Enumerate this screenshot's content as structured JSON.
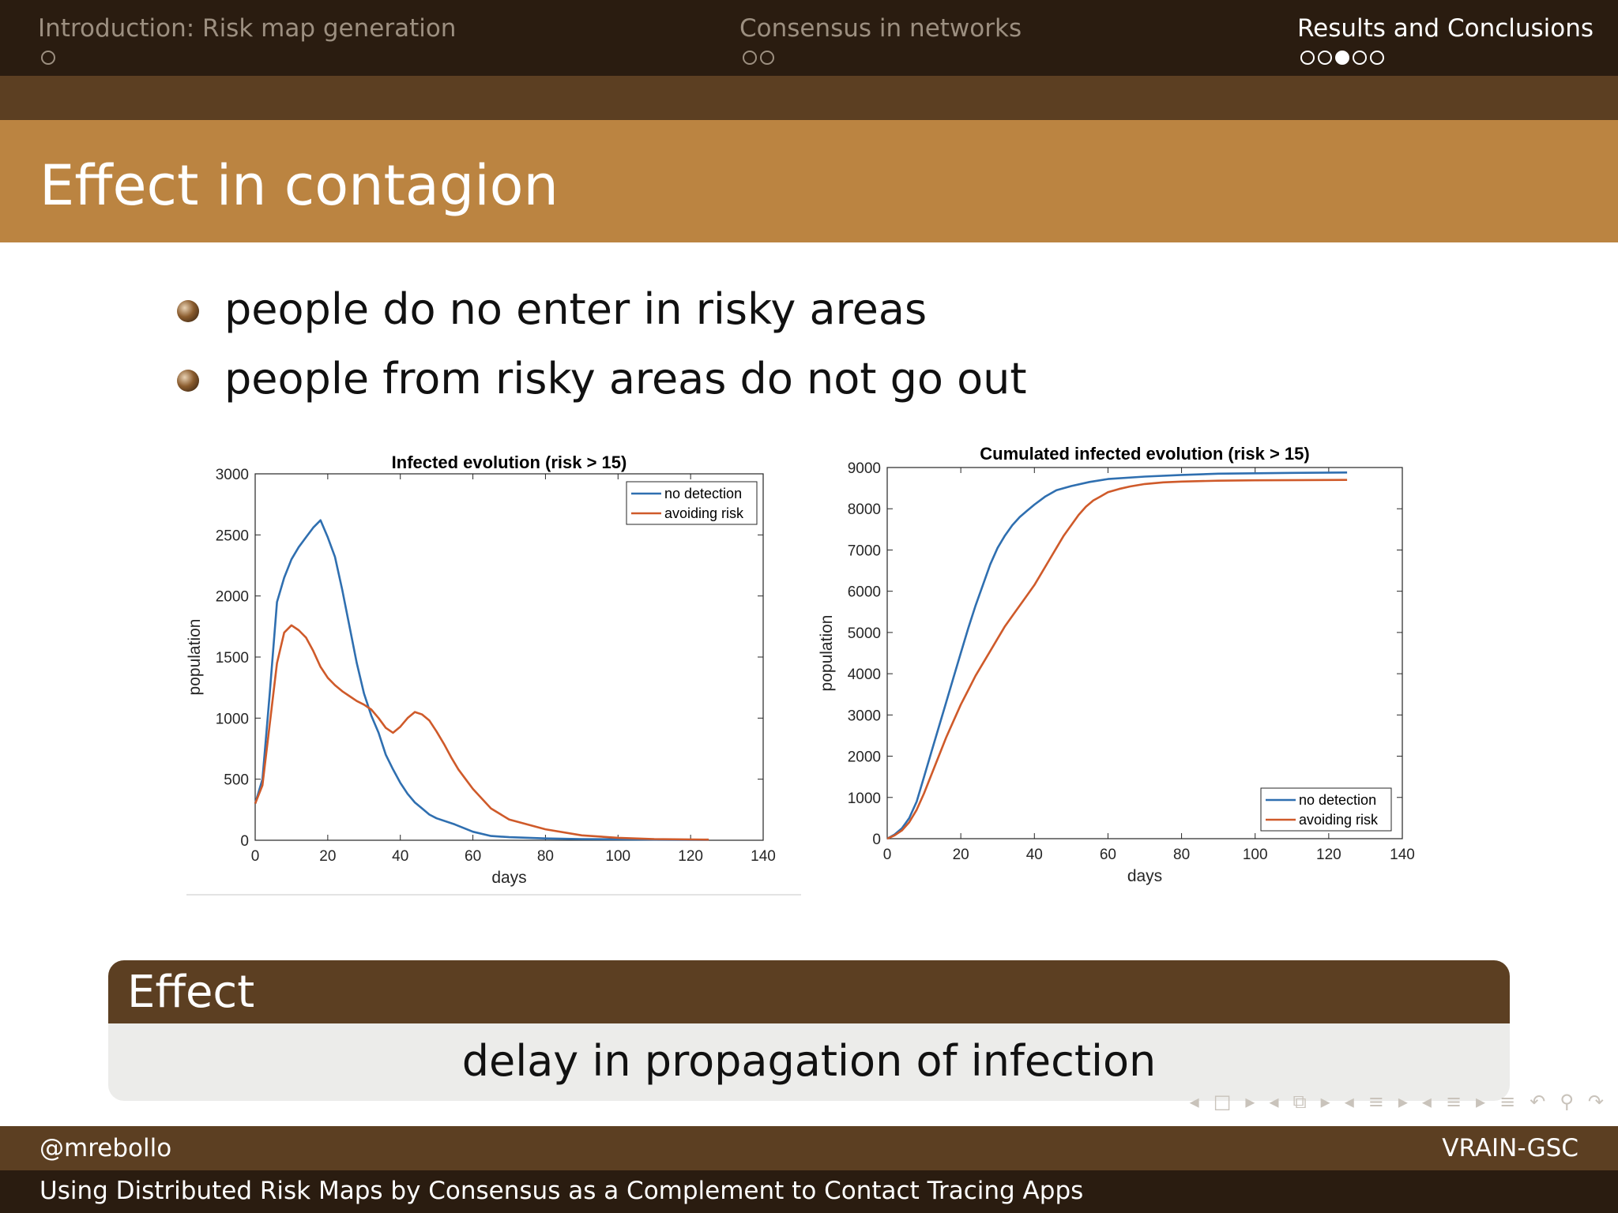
{
  "header": {
    "sections": [
      {
        "label": "Introduction: Risk map generation",
        "subsections": 1,
        "current": -1
      },
      {
        "label": "Consensus in networks",
        "subsections": 2,
        "current": -1
      },
      {
        "label": "Results and Conclusions",
        "subsections": 5,
        "current": 2
      }
    ]
  },
  "frame": {
    "title": "Effect in contagion"
  },
  "bullets": [
    "people do no enter in risky areas",
    "people from risky areas do not go out"
  ],
  "block": {
    "title": "Effect",
    "body": "delay in propagation of infection"
  },
  "footer": {
    "author": "@mrebollo",
    "institute": "VRAIN-GSC",
    "talk_title": "Using Distributed Risk Maps by Consensus as a Complement to Contact Tracing Apps"
  },
  "colors": {
    "series_blue": "#2f6fb0",
    "series_red": "#cf5a2a",
    "title_bar": "#bb8441",
    "dark_brown": "#2a1c10",
    "mid_brown": "#5c3f22"
  },
  "chart_data": [
    {
      "type": "line",
      "title": "Infected evolution (risk > 15)",
      "xlabel": "days",
      "ylabel": "population",
      "xlim": [
        0,
        140
      ],
      "ylim": [
        0,
        3000
      ],
      "xticks": [
        0,
        20,
        40,
        60,
        80,
        100,
        120,
        140
      ],
      "yticks": [
        0,
        500,
        1000,
        1500,
        2000,
        2500,
        3000
      ],
      "legend": "top-right",
      "series": [
        {
          "name": "no detection",
          "x": [
            0,
            2,
            4,
            6,
            8,
            10,
            12,
            14,
            16,
            18,
            20,
            22,
            24,
            26,
            28,
            30,
            32,
            34,
            36,
            38,
            40,
            42,
            44,
            46,
            48,
            50,
            55,
            60,
            65,
            70,
            80,
            90,
            100,
            110,
            125
          ],
          "values": [
            300,
            500,
            1200,
            1950,
            2150,
            2300,
            2400,
            2480,
            2560,
            2620,
            2480,
            2320,
            2050,
            1750,
            1450,
            1200,
            1020,
            880,
            700,
            580,
            470,
            380,
            310,
            260,
            210,
            180,
            130,
            70,
            35,
            25,
            15,
            10,
            8,
            5,
            3
          ]
        },
        {
          "name": "avoiding risk",
          "x": [
            0,
            2,
            4,
            6,
            8,
            10,
            12,
            14,
            16,
            18,
            20,
            22,
            24,
            26,
            28,
            30,
            32,
            34,
            36,
            38,
            40,
            42,
            44,
            46,
            48,
            50,
            52,
            54,
            56,
            58,
            60,
            65,
            70,
            80,
            90,
            100,
            110,
            125
          ],
          "values": [
            300,
            450,
            950,
            1450,
            1700,
            1760,
            1720,
            1660,
            1550,
            1420,
            1330,
            1270,
            1220,
            1180,
            1140,
            1110,
            1070,
            1000,
            920,
            880,
            930,
            1000,
            1050,
            1030,
            980,
            890,
            790,
            680,
            580,
            500,
            420,
            260,
            170,
            90,
            40,
            20,
            10,
            5
          ]
        }
      ]
    },
    {
      "type": "line",
      "title": "Cumulated infected evolution (risk > 15)",
      "xlabel": "days",
      "ylabel": "population",
      "xlim": [
        0,
        140
      ],
      "ylim": [
        0,
        9000
      ],
      "xticks": [
        0,
        20,
        40,
        60,
        80,
        100,
        120,
        140
      ],
      "yticks": [
        0,
        1000,
        2000,
        3000,
        4000,
        5000,
        6000,
        7000,
        8000,
        9000
      ],
      "legend": "bottom-right",
      "series": [
        {
          "name": "no detection",
          "x": [
            0,
            2,
            4,
            6,
            8,
            10,
            12,
            14,
            16,
            18,
            20,
            22,
            24,
            26,
            28,
            30,
            32,
            34,
            36,
            38,
            40,
            43,
            46,
            50,
            55,
            60,
            70,
            80,
            90,
            100,
            110,
            125
          ],
          "values": [
            0,
            100,
            250,
            500,
            900,
            1500,
            2100,
            2700,
            3300,
            3900,
            4500,
            5100,
            5650,
            6150,
            6650,
            7050,
            7350,
            7600,
            7800,
            7950,
            8100,
            8300,
            8450,
            8550,
            8650,
            8720,
            8780,
            8820,
            8850,
            8860,
            8870,
            8880
          ]
        },
        {
          "name": "avoiding risk",
          "x": [
            0,
            2,
            4,
            6,
            8,
            10,
            12,
            14,
            16,
            18,
            20,
            22,
            24,
            26,
            28,
            30,
            32,
            34,
            36,
            38,
            40,
            42,
            44,
            46,
            48,
            50,
            52,
            54,
            56,
            58,
            60,
            63,
            66,
            70,
            75,
            80,
            90,
            100,
            125
          ],
          "values": [
            0,
            80,
            200,
            400,
            700,
            1100,
            1550,
            2000,
            2450,
            2850,
            3250,
            3600,
            3950,
            4250,
            4550,
            4850,
            5150,
            5400,
            5650,
            5900,
            6150,
            6450,
            6750,
            7050,
            7350,
            7600,
            7850,
            8050,
            8200,
            8300,
            8400,
            8480,
            8540,
            8600,
            8640,
            8660,
            8680,
            8690,
            8700
          ]
        }
      ]
    }
  ]
}
